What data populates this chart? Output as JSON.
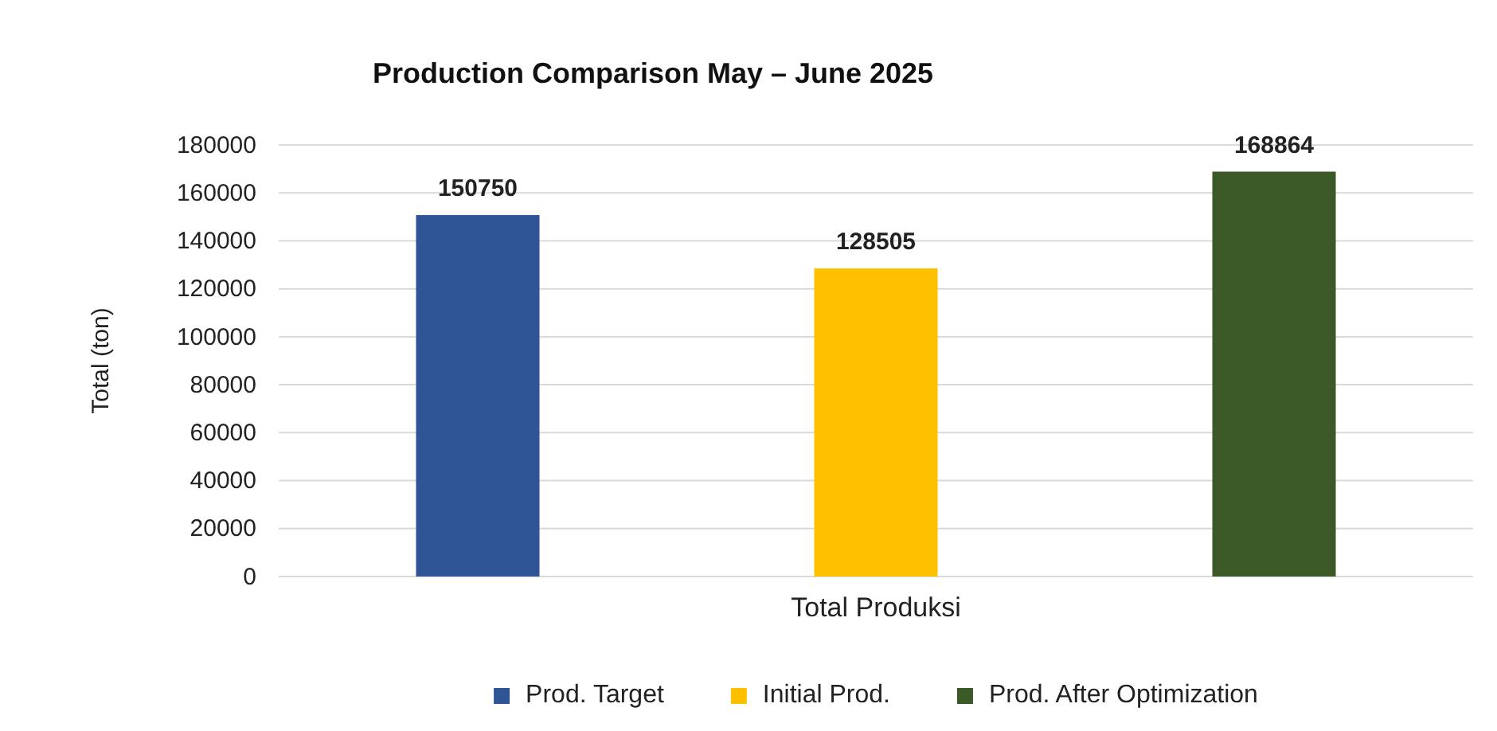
{
  "chart_data": {
    "type": "bar",
    "title": "Production Comparison May – June 2025",
    "ylabel": "Total (ton)",
    "categories": [
      "Total Produksi"
    ],
    "series": [
      {
        "name": "Prod. Target",
        "color": "#2f5597",
        "values": [
          150750
        ]
      },
      {
        "name": "Initial Prod.",
        "color": "#ffc000",
        "values": [
          128505
        ]
      },
      {
        "name": "Prod. After Optimization",
        "color": "#3b5a27",
        "values": [
          168864
        ]
      }
    ],
    "ylim": [
      0,
      180000
    ],
    "yticks": [
      0,
      20000,
      40000,
      60000,
      80000,
      100000,
      120000,
      140000,
      160000,
      180000
    ],
    "grid": "y",
    "legend": "bottom",
    "data_labels": true
  }
}
